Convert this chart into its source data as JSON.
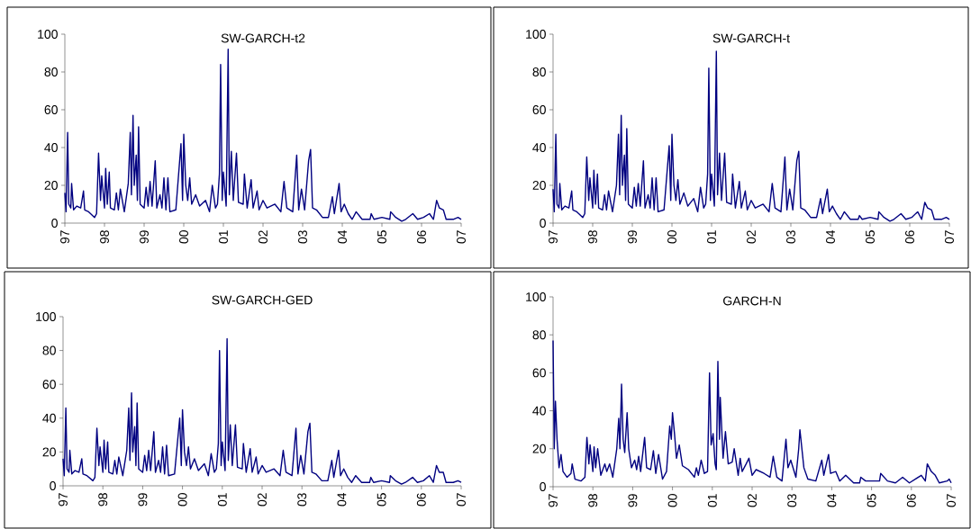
{
  "chart_data": [
    {
      "type": "line",
      "title": "SW-GARCH-t2",
      "color": "#000080",
      "xlim": [
        1997,
        2007
      ],
      "ylim": [
        0,
        100
      ],
      "yticks": [
        0,
        20,
        40,
        60,
        80,
        100
      ],
      "xticks": [
        {
          "value": 1997,
          "label": "97"
        },
        {
          "value": 1998,
          "label": "98"
        },
        {
          "value": 1999,
          "label": "99"
        },
        {
          "value": 2000,
          "label": "00"
        },
        {
          "value": 2001,
          "label": "01"
        },
        {
          "value": 2002,
          "label": "02"
        },
        {
          "value": 2003,
          "label": "03"
        },
        {
          "value": 2004,
          "label": "04"
        },
        {
          "value": 2005,
          "label": "05"
        },
        {
          "value": 2006,
          "label": "06"
        },
        {
          "value": 2007,
          "label": "07"
        }
      ],
      "x": [
        1997.0,
        1997.03,
        1997.07,
        1997.1,
        1997.15,
        1997.17,
        1997.22,
        1997.3,
        1997.4,
        1997.47,
        1997.5,
        1997.6,
        1997.75,
        1997.8,
        1997.85,
        1997.9,
        1997.93,
        1998.0,
        1998.03,
        1998.07,
        1998.12,
        1998.15,
        1998.25,
        1998.3,
        1998.35,
        1998.4,
        1998.5,
        1998.6,
        1998.65,
        1998.68,
        1998.72,
        1998.75,
        1998.8,
        1998.83,
        1998.86,
        1998.9,
        1999.0,
        1999.05,
        1999.1,
        1999.15,
        1999.2,
        1999.28,
        1999.32,
        1999.4,
        1999.45,
        1999.5,
        1999.55,
        1999.6,
        1999.65,
        1999.8,
        1999.93,
        1999.97,
        2000.0,
        2000.05,
        2000.1,
        2000.15,
        2000.2,
        2000.3,
        2000.4,
        2000.55,
        2000.65,
        2000.72,
        2000.8,
        2000.85,
        2000.9,
        2000.93,
        2000.97,
        2001.0,
        2001.07,
        2001.12,
        2001.15,
        2001.2,
        2001.25,
        2001.33,
        2001.38,
        2001.5,
        2001.53,
        2001.6,
        2001.7,
        2001.75,
        2001.85,
        2001.9,
        2002.0,
        2002.1,
        2002.3,
        2002.45,
        2002.53,
        2002.6,
        2002.75,
        2002.85,
        2002.9,
        2002.97,
        2003.05,
        2003.15,
        2003.2,
        2003.25,
        2003.35,
        2003.5,
        2003.65,
        2003.75,
        2003.8,
        2003.92,
        2003.97,
        2004.05,
        2004.15,
        2004.25,
        2004.35,
        2004.5,
        2004.7,
        2004.73,
        2004.8,
        2005.0,
        2005.2,
        2005.22,
        2005.35,
        2005.5,
        2005.6,
        2005.78,
        2005.9,
        2006.05,
        2006.2,
        2006.3,
        2006.38,
        2006.45,
        2006.55,
        2006.62,
        2006.8,
        2006.92,
        2007.0
      ],
      "values": [
        16,
        6,
        48,
        10,
        8,
        21,
        7,
        9,
        8,
        17,
        7,
        6,
        3,
        5,
        37,
        12,
        25,
        8,
        29,
        10,
        27,
        8,
        7,
        16,
        7,
        18,
        6,
        21,
        48,
        15,
        57,
        20,
        36,
        12,
        51,
        10,
        8,
        19,
        9,
        22,
        9,
        33,
        8,
        15,
        8,
        24,
        7,
        24,
        6,
        7,
        42,
        12,
        47,
        20,
        12,
        24,
        10,
        15,
        9,
        12,
        6,
        20,
        8,
        10,
        26,
        84,
        12,
        27,
        9,
        92,
        15,
        38,
        12,
        37,
        11,
        10,
        26,
        8,
        23,
        8,
        17,
        7,
        12,
        8,
        10,
        6,
        22,
        8,
        6,
        36,
        7,
        18,
        7,
        33,
        39,
        8,
        7,
        3,
        3,
        14,
        5,
        21,
        6,
        10,
        5,
        2,
        6,
        2,
        2,
        5,
        2,
        3,
        2,
        6,
        3,
        1,
        2,
        5,
        2,
        3,
        5,
        2,
        12,
        8,
        7,
        2,
        2,
        3,
        2
      ]
    },
    {
      "type": "line",
      "title": "SW-GARCH-t",
      "color": "#000080",
      "xlim": [
        1997,
        2007
      ],
      "ylim": [
        0,
        100
      ],
      "yticks": [
        0,
        20,
        40,
        60,
        80,
        100
      ],
      "xticks": [
        {
          "value": 1997,
          "label": "97"
        },
        {
          "value": 1998,
          "label": "98"
        },
        {
          "value": 1999,
          "label": "99"
        },
        {
          "value": 2000,
          "label": "00"
        },
        {
          "value": 2001,
          "label": "01"
        },
        {
          "value": 2002,
          "label": "02"
        },
        {
          "value": 2003,
          "label": "03"
        },
        {
          "value": 2004,
          "label": "04"
        },
        {
          "value": 2005,
          "label": "05"
        },
        {
          "value": 2006,
          "label": "06"
        },
        {
          "value": 2007,
          "label": "07"
        }
      ],
      "x": [
        1997.0,
        1997.03,
        1997.07,
        1997.1,
        1997.15,
        1997.17,
        1997.22,
        1997.3,
        1997.4,
        1997.47,
        1997.5,
        1997.6,
        1997.75,
        1997.8,
        1997.85,
        1997.9,
        1997.93,
        1998.0,
        1998.03,
        1998.07,
        1998.12,
        1998.15,
        1998.25,
        1998.3,
        1998.35,
        1998.4,
        1998.5,
        1998.6,
        1998.65,
        1998.68,
        1998.72,
        1998.75,
        1998.8,
        1998.83,
        1998.86,
        1998.9,
        1999.0,
        1999.05,
        1999.1,
        1999.15,
        1999.2,
        1999.28,
        1999.32,
        1999.4,
        1999.45,
        1999.5,
        1999.55,
        1999.6,
        1999.65,
        1999.8,
        1999.93,
        1999.97,
        2000.0,
        2000.05,
        2000.1,
        2000.15,
        2000.2,
        2000.3,
        2000.4,
        2000.55,
        2000.65,
        2000.72,
        2000.8,
        2000.85,
        2000.9,
        2000.93,
        2000.97,
        2001.0,
        2001.07,
        2001.12,
        2001.15,
        2001.2,
        2001.25,
        2001.33,
        2001.38,
        2001.5,
        2001.53,
        2001.6,
        2001.7,
        2001.75,
        2001.85,
        2001.9,
        2002.0,
        2002.1,
        2002.3,
        2002.45,
        2002.53,
        2002.6,
        2002.75,
        2002.85,
        2002.9,
        2002.97,
        2003.05,
        2003.15,
        2003.2,
        2003.25,
        2003.35,
        2003.5,
        2003.65,
        2003.75,
        2003.8,
        2003.92,
        2003.97,
        2004.05,
        2004.15,
        2004.25,
        2004.35,
        2004.5,
        2004.7,
        2004.73,
        2004.8,
        2005.0,
        2005.2,
        2005.22,
        2005.35,
        2005.5,
        2005.6,
        2005.78,
        2005.9,
        2006.05,
        2006.2,
        2006.3,
        2006.38,
        2006.45,
        2006.55,
        2006.62,
        2006.8,
        2006.92,
        2007.0
      ],
      "values": [
        18,
        6,
        47,
        10,
        8,
        21,
        7,
        9,
        8,
        17,
        7,
        6,
        3,
        5,
        35,
        12,
        24,
        8,
        28,
        10,
        26,
        8,
        7,
        15,
        7,
        17,
        6,
        20,
        47,
        15,
        57,
        20,
        36,
        12,
        50,
        10,
        8,
        19,
        9,
        21,
        9,
        33,
        8,
        15,
        8,
        24,
        7,
        24,
        6,
        7,
        41,
        12,
        47,
        20,
        12,
        23,
        10,
        16,
        9,
        13,
        6,
        19,
        8,
        10,
        26,
        82,
        12,
        26,
        9,
        91,
        15,
        37,
        12,
        37,
        11,
        10,
        26,
        8,
        22,
        8,
        17,
        7,
        12,
        8,
        10,
        6,
        21,
        8,
        6,
        35,
        7,
        18,
        7,
        33,
        38,
        8,
        7,
        3,
        3,
        13,
        5,
        18,
        6,
        9,
        5,
        2,
        6,
        2,
        2,
        4,
        2,
        3,
        2,
        6,
        3,
        1,
        2,
        5,
        2,
        3,
        6,
        2,
        11,
        8,
        7,
        2,
        2,
        3,
        2
      ]
    },
    {
      "type": "line",
      "title": "SW-GARCH-GED",
      "color": "#000080",
      "xlim": [
        1997,
        2007
      ],
      "ylim": [
        0,
        100
      ],
      "yticks": [
        0,
        20,
        40,
        60,
        80,
        100
      ],
      "xticks": [
        {
          "value": 1997,
          "label": "97"
        },
        {
          "value": 1998,
          "label": "98"
        },
        {
          "value": 1999,
          "label": "99"
        },
        {
          "value": 2000,
          "label": "00"
        },
        {
          "value": 2001,
          "label": "01"
        },
        {
          "value": 2002,
          "label": "02"
        },
        {
          "value": 2003,
          "label": "03"
        },
        {
          "value": 2004,
          "label": "04"
        },
        {
          "value": 2005,
          "label": "05"
        },
        {
          "value": 2006,
          "label": "06"
        },
        {
          "value": 2007,
          "label": "07"
        }
      ],
      "x": [
        1997.0,
        1997.03,
        1997.07,
        1997.1,
        1997.15,
        1997.17,
        1997.22,
        1997.3,
        1997.4,
        1997.47,
        1997.5,
        1997.6,
        1997.75,
        1997.8,
        1997.85,
        1997.9,
        1997.93,
        1998.0,
        1998.03,
        1998.07,
        1998.12,
        1998.15,
        1998.25,
        1998.3,
        1998.35,
        1998.4,
        1998.5,
        1998.6,
        1998.65,
        1998.68,
        1998.72,
        1998.75,
        1998.8,
        1998.83,
        1998.86,
        1998.9,
        1999.0,
        1999.05,
        1999.1,
        1999.15,
        1999.2,
        1999.28,
        1999.32,
        1999.4,
        1999.45,
        1999.5,
        1999.55,
        1999.6,
        1999.65,
        1999.8,
        1999.93,
        1999.97,
        2000.0,
        2000.05,
        2000.1,
        2000.15,
        2000.2,
        2000.3,
        2000.4,
        2000.55,
        2000.65,
        2000.72,
        2000.8,
        2000.85,
        2000.9,
        2000.93,
        2000.97,
        2001.0,
        2001.07,
        2001.12,
        2001.15,
        2001.2,
        2001.25,
        2001.33,
        2001.38,
        2001.5,
        2001.53,
        2001.6,
        2001.7,
        2001.75,
        2001.85,
        2001.9,
        2002.0,
        2002.1,
        2002.3,
        2002.45,
        2002.53,
        2002.6,
        2002.75,
        2002.85,
        2002.9,
        2002.97,
        2003.05,
        2003.15,
        2003.2,
        2003.25,
        2003.35,
        2003.5,
        2003.65,
        2003.75,
        2003.8,
        2003.92,
        2003.97,
        2004.05,
        2004.15,
        2004.25,
        2004.35,
        2004.5,
        2004.7,
        2004.73,
        2004.8,
        2005.0,
        2005.2,
        2005.22,
        2005.35,
        2005.5,
        2005.6,
        2005.78,
        2005.9,
        2006.05,
        2006.2,
        2006.3,
        2006.38,
        2006.45,
        2006.55,
        2006.62,
        2006.8,
        2006.92,
        2007.0
      ],
      "values": [
        16,
        6,
        46,
        10,
        8,
        21,
        7,
        9,
        8,
        16,
        7,
        6,
        3,
        5,
        34,
        12,
        23,
        8,
        27,
        10,
        26,
        8,
        7,
        15,
        7,
        17,
        6,
        21,
        46,
        15,
        55,
        20,
        35,
        12,
        49,
        10,
        8,
        18,
        9,
        21,
        9,
        32,
        8,
        15,
        8,
        23,
        7,
        24,
        6,
        7,
        40,
        12,
        45,
        20,
        12,
        23,
        10,
        16,
        9,
        13,
        6,
        19,
        8,
        10,
        25,
        80,
        12,
        26,
        9,
        87,
        15,
        36,
        12,
        36,
        11,
        10,
        25,
        8,
        22,
        8,
        17,
        7,
        12,
        8,
        10,
        6,
        21,
        8,
        6,
        34,
        7,
        18,
        7,
        32,
        37,
        8,
        7,
        3,
        3,
        15,
        5,
        21,
        6,
        10,
        5,
        2,
        6,
        2,
        2,
        5,
        2,
        3,
        2,
        6,
        3,
        1,
        2,
        5,
        2,
        3,
        6,
        2,
        12,
        8,
        8,
        2,
        2,
        3,
        2
      ]
    },
    {
      "type": "line",
      "title": "GARCH-N",
      "color": "#000080",
      "xlim": [
        1997,
        2007
      ],
      "ylim": [
        0,
        100
      ],
      "yticks": [
        0,
        20,
        40,
        60,
        80,
        100
      ],
      "xticks": [
        {
          "value": 1997,
          "label": "97"
        },
        {
          "value": 1998,
          "label": "98"
        },
        {
          "value": 1999,
          "label": "99"
        },
        {
          "value": 2000,
          "label": "00"
        },
        {
          "value": 2001,
          "label": "01"
        },
        {
          "value": 2002,
          "label": "02"
        },
        {
          "value": 2003,
          "label": "03"
        },
        {
          "value": 2004,
          "label": "04"
        },
        {
          "value": 2005,
          "label": "05"
        },
        {
          "value": 2006,
          "label": "06"
        },
        {
          "value": 2007,
          "label": "07"
        }
      ],
      "x": [
        1997.0,
        1997.03,
        1997.06,
        1997.1,
        1997.15,
        1997.2,
        1997.25,
        1997.35,
        1997.45,
        1997.48,
        1997.55,
        1997.7,
        1997.8,
        1997.85,
        1997.9,
        1997.93,
        1998.0,
        1998.03,
        1998.07,
        1998.12,
        1998.2,
        1998.3,
        1998.35,
        1998.42,
        1998.5,
        1998.6,
        1998.65,
        1998.68,
        1998.72,
        1998.76,
        1998.8,
        1998.86,
        1998.9,
        1998.97,
        1999.05,
        1999.1,
        1999.15,
        1999.2,
        1999.3,
        1999.35,
        1999.45,
        1999.52,
        1999.58,
        1999.65,
        1999.75,
        1999.85,
        1999.93,
        1999.97,
        2000.0,
        2000.05,
        2000.1,
        2000.17,
        2000.25,
        2000.4,
        2000.55,
        2000.6,
        2000.65,
        2000.72,
        2000.8,
        2000.88,
        2000.93,
        2000.97,
        2001.02,
        2001.07,
        2001.1,
        2001.14,
        2001.18,
        2001.2,
        2001.27,
        2001.33,
        2001.4,
        2001.5,
        2001.55,
        2001.65,
        2001.7,
        2001.75,
        2001.85,
        2001.92,
        2002.0,
        2002.1,
        2002.3,
        2002.45,
        2002.53,
        2002.62,
        2002.75,
        2002.85,
        2002.9,
        2002.97,
        2003.1,
        2003.17,
        2003.2,
        2003.3,
        2003.4,
        2003.6,
        2003.75,
        2003.8,
        2003.92,
        2003.97,
        2004.1,
        2004.2,
        2004.35,
        2004.55,
        2004.7,
        2004.73,
        2004.85,
        2005.2,
        2005.23,
        2005.4,
        2005.6,
        2005.78,
        2005.95,
        2006.1,
        2006.25,
        2006.35,
        2006.4,
        2006.5,
        2006.6,
        2006.7,
        2006.9,
        2006.95,
        2007.0
      ],
      "values": [
        77,
        20,
        45,
        25,
        10,
        17,
        8,
        5,
        7,
        12,
        4,
        3,
        5,
        26,
        12,
        22,
        8,
        21,
        10,
        20,
        6,
        12,
        8,
        12,
        5,
        20,
        36,
        20,
        54,
        25,
        18,
        39,
        20,
        10,
        14,
        9,
        16,
        8,
        26,
        10,
        9,
        19,
        7,
        17,
        4,
        8,
        32,
        25,
        39,
        28,
        15,
        22,
        11,
        9,
        5,
        10,
        6,
        14,
        7,
        8,
        60,
        22,
        28,
        12,
        9,
        66,
        25,
        47,
        15,
        29,
        12,
        13,
        20,
        6,
        15,
        8,
        12,
        15,
        6,
        9,
        7,
        5,
        16,
        5,
        3,
        25,
        10,
        14,
        5,
        20,
        30,
        10,
        4,
        3,
        14,
        6,
        17,
        7,
        8,
        3,
        6,
        2,
        2,
        5,
        3,
        3,
        7,
        3,
        2,
        5,
        2,
        4,
        6,
        3,
        12,
        8,
        6,
        2,
        3,
        4,
        2
      ]
    }
  ]
}
